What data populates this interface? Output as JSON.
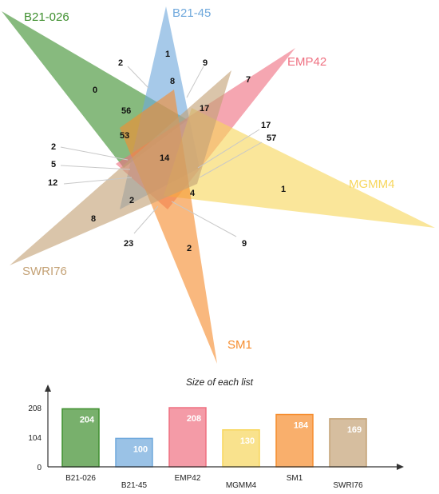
{
  "sets": [
    {
      "name": "B21-026",
      "color": "#3e8f2e",
      "size": 204
    },
    {
      "name": "B21-45",
      "color": "#6fa8dc",
      "size": 100
    },
    {
      "name": "EMP42",
      "color": "#ef7081",
      "size": 208
    },
    {
      "name": "MGMM4",
      "color": "#f7d65c",
      "size": 130
    },
    {
      "name": "SM1",
      "color": "#f68d2e",
      "size": 184
    },
    {
      "name": "SWRI76",
      "color": "#c4a276",
      "size": 169
    }
  ],
  "regions": [
    {
      "value": "0"
    },
    {
      "value": "1"
    },
    {
      "value": "2"
    },
    {
      "value": "9"
    },
    {
      "value": "8"
    },
    {
      "value": "7"
    },
    {
      "value": "56"
    },
    {
      "value": "17"
    },
    {
      "value": "53"
    },
    {
      "value": "17"
    },
    {
      "value": "57"
    },
    {
      "value": "2"
    },
    {
      "value": "5"
    },
    {
      "value": "14"
    },
    {
      "value": "12"
    },
    {
      "value": "1"
    },
    {
      "value": "2"
    },
    {
      "value": "4"
    },
    {
      "value": "8"
    },
    {
      "value": "23"
    },
    {
      "value": "2"
    },
    {
      "value": "9"
    }
  ],
  "chart_data": {
    "type": "bar",
    "title": "Size of each list",
    "categories": [
      "B21-026",
      "B21-45",
      "EMP42",
      "MGMM4",
      "SM1",
      "SWRI76"
    ],
    "values": [
      204,
      100,
      208,
      130,
      184,
      169
    ],
    "yticks": [
      "0",
      "104",
      "208"
    ],
    "ylim": [
      0,
      208
    ],
    "colors": [
      "#3e8f2e",
      "#6fa8dc",
      "#ef7081",
      "#f7d65c",
      "#f68d2e",
      "#c4a276"
    ]
  }
}
